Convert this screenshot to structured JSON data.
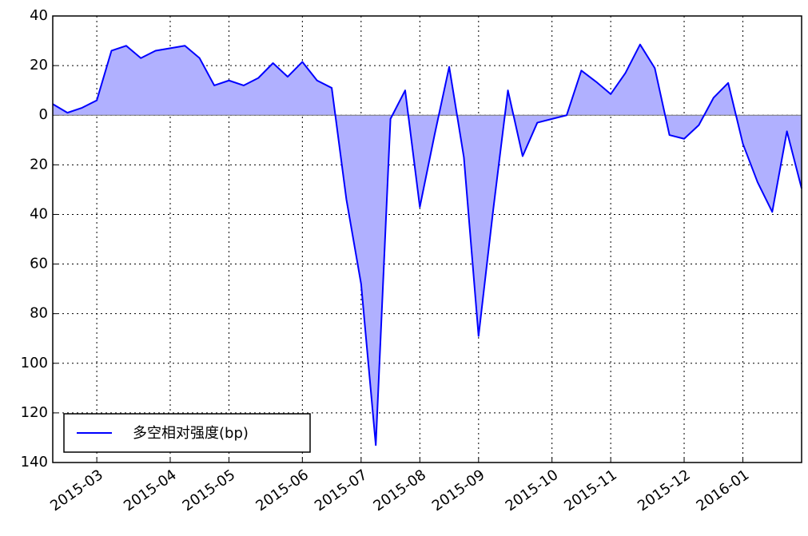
{
  "chart_data": {
    "type": "area",
    "categories": [
      null,
      null,
      null,
      "2015-03",
      null,
      null,
      null,
      null,
      "2015-04",
      null,
      null,
      null,
      "2015-05",
      null,
      null,
      null,
      null,
      "2015-06",
      null,
      null,
      null,
      "2015-07",
      null,
      null,
      null,
      "2015-08",
      null,
      null,
      null,
      "2015-09",
      null,
      null,
      null,
      null,
      "2015-10",
      null,
      null,
      null,
      "2015-11",
      null,
      null,
      null,
      null,
      "2015-12",
      null,
      null,
      null,
      "2016-01",
      null,
      null,
      null,
      null
    ],
    "series": [
      {
        "name": "多空相对强度(bp)",
        "color": "#0000ff",
        "fill": "#b0b0ff",
        "values": [
          4.5,
          1,
          3,
          6,
          26,
          28,
          23,
          26,
          27,
          28,
          23,
          12,
          14,
          12,
          15,
          21,
          15.5,
          21.5,
          14,
          11,
          -34,
          -68,
          -133,
          -1.5,
          10,
          -37,
          -8,
          19.5,
          -17,
          -89,
          -38,
          10,
          -16.5,
          -3,
          -1.5,
          0,
          18,
          13.5,
          8.5,
          17,
          28.5,
          19,
          -8,
          -9.5,
          -4,
          7,
          13,
          -11.5,
          -27,
          -39,
          -6.5,
          -29.5
        ]
      }
    ],
    "ylim": [
      -140,
      40
    ],
    "yticks": [
      {
        "value": -140,
        "label": "140"
      },
      {
        "value": -120,
        "label": "120"
      },
      {
        "value": -100,
        "label": "100"
      },
      {
        "value": -80,
        "label": "80"
      },
      {
        "value": -60,
        "label": "60"
      },
      {
        "value": -40,
        "label": "40"
      },
      {
        "value": -20,
        "label": "20"
      },
      0,
      20,
      40
    ],
    "grid": true,
    "legend": "lower left"
  }
}
